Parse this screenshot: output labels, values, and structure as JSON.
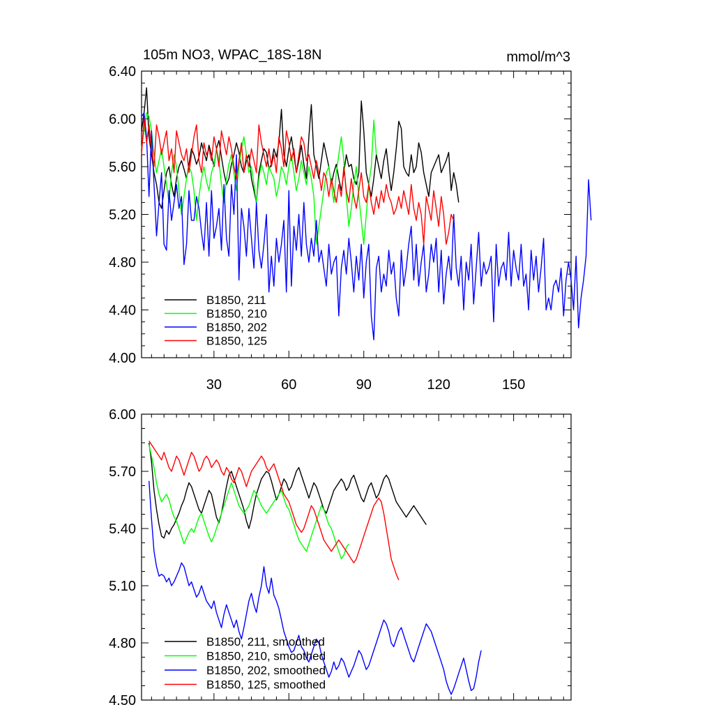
{
  "chart_data": [
    {
      "type": "line",
      "title": "105m NO3, WPAC_18S-18N",
      "units": "mmol/m^3",
      "xlabel": "",
      "ylabel": "",
      "xlim": [
        1,
        173
      ],
      "ylim": [
        4.0,
        6.4
      ],
      "x_ticks": [
        30,
        60,
        90,
        120,
        150
      ],
      "y_ticks": [
        4.0,
        4.4,
        4.8,
        5.2,
        5.6,
        6.0,
        6.4
      ],
      "y_tick_labels": [
        "4.00",
        "4.40",
        "4.80",
        "5.20",
        "5.60",
        "6.00",
        "6.40"
      ],
      "x_tick_labels": [
        "30",
        "60",
        "90",
        "120",
        "150"
      ],
      "legend_position": "bottom-left",
      "series": [
        {
          "name": "B1850, 211",
          "color": "#000000",
          "x_start": 1,
          "values": [
            5.9,
            6.05,
            6.26,
            5.85,
            5.7,
            5.55,
            5.45,
            5.3,
            5.25,
            5.4,
            5.55,
            5.6,
            5.45,
            5.35,
            5.5,
            5.6,
            5.65,
            5.58,
            5.5,
            5.62,
            5.75,
            5.7,
            5.62,
            5.68,
            5.8,
            5.72,
            5.65,
            5.78,
            5.7,
            5.6,
            5.75,
            5.82,
            5.68,
            5.55,
            5.45,
            5.5,
            5.62,
            5.7,
            5.8,
            5.72,
            5.6,
            5.55,
            5.65,
            5.7,
            5.5,
            5.4,
            5.3,
            5.55,
            5.65,
            5.75,
            5.72,
            5.58,
            5.62,
            5.75,
            5.68,
            5.8,
            6.08,
            5.7,
            5.6,
            5.75,
            5.85,
            5.7,
            5.55,
            5.65,
            5.78,
            5.62,
            5.5,
            5.85,
            6.12,
            5.7,
            5.6,
            5.5,
            5.65,
            5.8,
            5.7,
            5.6,
            5.45,
            5.55,
            5.62,
            5.5,
            5.4,
            5.55,
            5.7,
            5.6,
            5.62,
            5.5,
            5.45,
            5.55,
            6.15,
            5.9,
            5.55,
            5.45,
            5.35,
            5.5,
            5.7,
            5.6,
            5.5,
            5.65,
            5.75,
            5.55,
            5.4,
            5.55,
            5.75,
            5.98,
            5.92,
            5.6,
            5.55,
            5.52,
            5.7,
            5.55,
            5.6,
            5.8,
            5.72,
            5.55,
            5.45,
            5.35,
            5.55,
            5.6,
            5.65,
            5.7,
            5.55,
            5.6,
            5.65,
            5.72,
            5.4,
            5.55,
            5.45,
            5.3
          ]
        },
        {
          "name": "B1850, 210",
          "color": "#00ff00",
          "x_start": 1,
          "values": [
            5.75,
            5.9,
            6.05,
            6.02,
            5.9,
            5.7,
            5.55,
            5.65,
            5.75,
            5.6,
            5.45,
            5.3,
            5.55,
            5.7,
            5.6,
            5.4,
            5.2,
            5.35,
            5.5,
            5.6,
            5.55,
            5.4,
            5.15,
            5.35,
            5.5,
            5.6,
            5.48,
            5.4,
            5.55,
            5.62,
            5.75,
            5.65,
            5.45,
            5.3,
            5.5,
            5.62,
            5.7,
            5.55,
            5.4,
            5.6,
            5.75,
            5.85,
            5.7,
            5.55,
            5.6,
            5.45,
            5.3,
            5.5,
            5.62,
            5.55,
            5.45,
            5.6,
            5.55,
            5.5,
            5.35,
            5.45,
            5.6,
            5.55,
            5.45,
            5.6,
            5.7,
            5.55,
            5.4,
            5.5,
            5.65,
            5.55,
            5.45,
            5.6,
            5.5,
            5.35,
            4.95,
            5.1,
            5.25,
            5.4,
            5.55,
            5.6,
            5.45,
            5.3,
            5.55,
            5.7,
            5.85,
            5.65,
            5.35,
            5.1,
            5.25,
            5.45,
            5.6,
            5.35,
            5.15,
            4.95,
            5.2,
            5.45,
            5.6,
            5.99,
            5.7
          ]
        },
        {
          "name": "B1850, 202",
          "color": "#0000ff",
          "x_start": 1,
          "values": [
            6.02,
            6.05,
            5.85,
            5.35,
            5.9,
            5.45,
            5.02,
            5.3,
            5.55,
            4.95,
            4.9,
            5.4,
            5.15,
            5.3,
            5.45,
            5.25,
            5.35,
            4.78,
            4.95,
            5.4,
            5.15,
            5.15,
            5.35,
            5.25,
            5.05,
            4.9,
            5.3,
            4.85,
            5.4,
            5.0,
            5.1,
            5.25,
            4.9,
            5.45,
            5.0,
            4.85,
            5.45,
            5.2,
            5.7,
            4.65,
            5.25,
            5.1,
            4.85,
            5.25,
            5.0,
            4.75,
            5.3,
            4.9,
            4.75,
            4.95,
            5.2,
            4.55,
            4.85,
            4.6,
            5.0,
            4.8,
            4.95,
            5.15,
            4.55,
            5.4,
            4.6,
            5.1,
            4.9,
            5.2,
            4.85,
            5.3,
            4.95,
            4.8,
            5.0,
            4.85,
            5.15,
            4.8,
            4.9,
            4.75,
            4.6,
            4.95,
            4.7,
            4.8,
            4.85,
            4.35,
            4.75,
            4.9,
            4.7,
            5.0,
            4.8,
            4.55,
            4.85,
            4.65,
            4.95,
            4.5,
            4.8,
            4.95,
            4.35,
            4.15,
            4.75,
            4.85,
            4.55,
            4.7,
            4.6,
            4.9,
            4.7,
            4.8,
            4.5,
            4.35,
            4.9,
            4.6,
            4.75,
            4.95,
            5.1,
            4.65,
            4.95,
            4.6,
            4.8,
            4.95,
            4.55,
            4.7,
            4.95,
            4.8,
            5.0,
            4.55,
            4.9,
            4.45,
            4.7,
            4.85,
            4.65,
            5.2,
            4.75,
            4.6,
            4.85,
            4.4,
            4.8,
            4.65,
            4.95,
            4.45,
            4.75,
            5.05,
            4.6,
            4.8,
            4.7,
            4.75,
            4.85,
            4.3,
            4.95,
            4.6,
            4.75,
            4.8,
            4.65,
            5.05,
            4.6,
            4.9,
            4.75,
            4.65,
            4.95,
            4.6,
            4.7,
            4.4,
            4.9,
            4.65,
            4.85,
            4.55,
            4.75,
            5.0,
            4.4,
            4.5,
            4.4,
            4.6,
            4.65,
            4.55,
            4.75,
            4.35,
            4.65,
            4.8,
            4.65,
            4.4,
            4.85,
            4.25,
            4.5,
            4.65,
            4.85,
            5.49,
            5.15
          ]
        },
        {
          "name": "B1850, 125",
          "color": "#ff0000",
          "x_start": 1,
          "values": [
            5.7,
            6.0,
            5.8,
            5.95,
            5.75,
            5.6,
            5.95,
            5.85,
            5.7,
            5.8,
            5.9,
            5.65,
            5.75,
            5.55,
            5.9,
            5.8,
            5.7,
            5.65,
            5.75,
            5.55,
            5.7,
            5.85,
            5.95,
            5.65,
            5.55,
            5.8,
            5.7,
            5.75,
            5.65,
            5.85,
            5.75,
            5.6,
            5.9,
            5.8,
            5.7,
            5.85,
            5.75,
            5.6,
            5.5,
            5.65,
            5.8,
            5.55,
            5.7,
            5.6,
            5.75,
            5.65,
            5.55,
            5.95,
            5.8,
            5.7,
            5.6,
            5.75,
            5.6,
            5.7,
            5.55,
            5.85,
            5.75,
            5.6,
            5.9,
            5.8,
            5.65,
            5.75,
            5.55,
            5.7,
            5.85,
            5.8,
            5.65,
            5.7,
            5.6,
            5.5,
            5.65,
            5.55,
            5.4,
            5.55,
            5.5,
            5.35,
            5.5,
            5.4,
            5.3,
            5.45,
            5.35,
            5.6,
            5.4,
            5.3,
            5.5,
            5.35,
            5.25,
            5.4,
            5.55,
            5.35,
            5.3,
            5.45,
            5.3,
            5.2,
            5.35,
            5.25,
            5.4,
            5.3,
            5.45,
            5.35,
            5.3,
            5.2,
            5.25,
            5.35,
            5.25,
            5.4,
            5.3,
            5.2,
            5.45,
            5.25,
            5.15,
            5.3,
            5.2,
            4.95,
            5.35,
            5.25,
            5.15,
            5.4,
            5.25,
            5.1,
            5.35,
            5.2,
            4.95,
            5.05,
            5.2,
            5.15
          ]
        }
      ],
      "legend": [
        "B1850, 211",
        "B1850, 210",
        "B1850, 202",
        "B1850, 125"
      ]
    },
    {
      "type": "line",
      "title": "",
      "units": "",
      "xlabel": "",
      "ylabel": "",
      "xlim": [
        1,
        173
      ],
      "ylim": [
        4.5,
        6.0
      ],
      "x_ticks": [
        30,
        60,
        90,
        120,
        150
      ],
      "y_ticks": [
        4.5,
        4.8,
        5.1,
        5.4,
        5.7,
        6.0
      ],
      "y_tick_labels": [
        "4.50",
        "4.80",
        "5.10",
        "5.40",
        "5.70",
        "6.00"
      ],
      "legend_position": "bottom-left",
      "series": [
        {
          "name": "B1850, 211, smoothed",
          "color": "#000000",
          "x_start": 4,
          "values": [
            5.85,
            5.75,
            5.6,
            5.5,
            5.42,
            5.36,
            5.35,
            5.39,
            5.37,
            5.4,
            5.42,
            5.45,
            5.48,
            5.52,
            5.55,
            5.6,
            5.64,
            5.62,
            5.58,
            5.54,
            5.5,
            5.48,
            5.52,
            5.56,
            5.6,
            5.58,
            5.52,
            5.46,
            5.43,
            5.48,
            5.55,
            5.62,
            5.68,
            5.7,
            5.66,
            5.62,
            5.58,
            5.54,
            5.5,
            5.44,
            5.4,
            5.45,
            5.52,
            5.58,
            5.62,
            5.66,
            5.68,
            5.7,
            5.69,
            5.65,
            5.6,
            5.55,
            5.58,
            5.62,
            5.66,
            5.64,
            5.6,
            5.62,
            5.66,
            5.7,
            5.72,
            5.68,
            5.64,
            5.6,
            5.56,
            5.6,
            5.64,
            5.62,
            5.58,
            5.54,
            5.5,
            5.48,
            5.52,
            5.56,
            5.6,
            5.62,
            5.64,
            5.66,
            5.64,
            5.6,
            5.62,
            5.66,
            5.68,
            5.64,
            5.6,
            5.56,
            5.54,
            5.58,
            5.62,
            5.64,
            5.6,
            5.56,
            5.58,
            5.62,
            5.66,
            5.68,
            5.66,
            5.62,
            5.58,
            5.54,
            5.52,
            5.5,
            5.48,
            5.46,
            5.48,
            5.5,
            5.52,
            5.5,
            5.48,
            5.46,
            5.44,
            5.42
          ]
        },
        {
          "name": "B1850, 210, smoothed",
          "color": "#00ff00",
          "x_start": 4,
          "values": [
            5.84,
            5.78,
            5.72,
            5.64,
            5.58,
            5.54,
            5.56,
            5.58,
            5.55,
            5.5,
            5.46,
            5.44,
            5.4,
            5.36,
            5.32,
            5.35,
            5.38,
            5.4,
            5.38,
            5.42,
            5.46,
            5.48,
            5.44,
            5.4,
            5.36,
            5.33,
            5.36,
            5.4,
            5.44,
            5.48,
            5.52,
            5.56,
            5.6,
            5.64,
            5.6,
            5.56,
            5.52,
            5.5,
            5.48,
            5.5,
            5.52,
            5.56,
            5.6,
            5.58,
            5.55,
            5.52,
            5.5,
            5.48,
            5.5,
            5.52,
            5.54,
            5.56,
            5.58,
            5.6,
            5.56,
            5.52,
            5.5,
            5.46,
            5.42,
            5.38,
            5.34,
            5.32,
            5.3,
            5.28,
            5.32,
            5.36,
            5.4,
            5.44,
            5.48,
            5.52,
            5.5,
            5.46,
            5.42,
            5.4,
            5.36,
            5.32,
            5.28,
            5.24,
            5.26,
            5.3,
            5.32
          ]
        },
        {
          "name": "B1850, 202, smoothed",
          "color": "#0000ff",
          "x_start": 4,
          "values": [
            5.65,
            5.45,
            5.28,
            5.2,
            5.15,
            5.16,
            5.15,
            5.12,
            5.14,
            5.1,
            5.12,
            5.15,
            5.18,
            5.22,
            5.2,
            5.15,
            5.1,
            5.12,
            5.08,
            5.04,
            5.06,
            5.1,
            5.06,
            5.02,
            5.0,
            4.98,
            5.02,
            4.96,
            4.92,
            4.88,
            4.95,
            5.0,
            4.96,
            4.92,
            4.88,
            4.92,
            4.86,
            4.82,
            4.88,
            4.95,
            5.02,
            5.06,
            5.0,
            4.96,
            5.04,
            5.1,
            5.2,
            5.1,
            5.06,
            5.14,
            5.05,
            5.02,
            4.98,
            4.92,
            4.86,
            4.82,
            4.78,
            4.75,
            4.76,
            4.8,
            4.84,
            4.78,
            4.76,
            4.72,
            4.7,
            4.74,
            4.78,
            4.82,
            4.8,
            4.74,
            4.7,
            4.66,
            4.62,
            4.65,
            4.7,
            4.66,
            4.68,
            4.72,
            4.7,
            4.66,
            4.62,
            4.65,
            4.68,
            4.72,
            4.76,
            4.74,
            4.7,
            4.66,
            4.68,
            4.72,
            4.76,
            4.8,
            4.84,
            4.88,
            4.92,
            4.9,
            4.86,
            4.8,
            4.78,
            4.82,
            4.86,
            4.88,
            4.84,
            4.8,
            4.76,
            4.72,
            4.7,
            4.74,
            4.78,
            4.82,
            4.86,
            4.9,
            4.88,
            4.86,
            4.82,
            4.78,
            4.74,
            4.7,
            4.66,
            4.6,
            4.56,
            4.53,
            4.56,
            4.6,
            4.64,
            4.68,
            4.72,
            4.66,
            4.6,
            4.55,
            4.56,
            4.62,
            4.7,
            4.76
          ]
        },
        {
          "name": "B1850, 125, smoothed",
          "color": "#ff0000",
          "x_start": 4,
          "values": [
            5.86,
            5.84,
            5.82,
            5.8,
            5.78,
            5.76,
            5.8,
            5.76,
            5.72,
            5.7,
            5.74,
            5.78,
            5.76,
            5.72,
            5.68,
            5.72,
            5.76,
            5.8,
            5.78,
            5.74,
            5.7,
            5.72,
            5.76,
            5.78,
            5.76,
            5.72,
            5.74,
            5.76,
            5.74,
            5.7,
            5.68,
            5.72,
            5.7,
            5.66,
            5.64,
            5.68,
            5.72,
            5.7,
            5.66,
            5.62,
            5.66,
            5.7,
            5.72,
            5.74,
            5.76,
            5.78,
            5.76,
            5.72,
            5.7,
            5.72,
            5.74,
            5.7,
            5.66,
            5.62,
            5.58,
            5.56,
            5.54,
            5.5,
            5.46,
            5.42,
            5.4,
            5.38,
            5.4,
            5.44,
            5.48,
            5.52,
            5.5,
            5.46,
            5.42,
            5.38,
            5.34,
            5.32,
            5.3,
            5.28,
            5.3,
            5.32,
            5.34,
            5.32,
            5.3,
            5.28,
            5.26,
            5.24,
            5.22,
            5.24,
            5.28,
            5.32,
            5.36,
            5.4,
            5.44,
            5.48,
            5.52,
            5.54,
            5.56,
            5.54,
            5.48,
            5.4,
            5.32,
            5.24,
            5.2,
            5.16,
            5.13
          ]
        }
      ],
      "legend": [
        "B1850, 211, smoothed",
        "B1850, 210, smoothed",
        "B1850, 202, smoothed",
        "B1850, 125, smoothed"
      ]
    }
  ]
}
